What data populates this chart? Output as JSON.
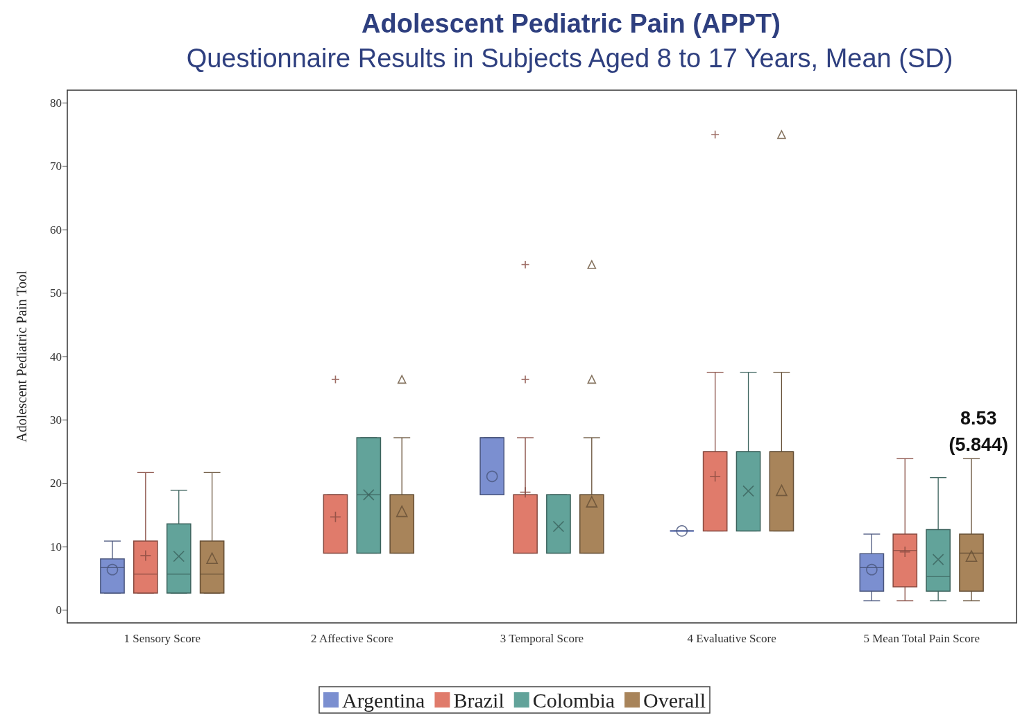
{
  "chart_data": {
    "type": "box",
    "title": "Adolescent Pediatric Pain (APPT)",
    "subtitle": "Questionnaire Results in Subjects Aged 8 to 17 Years, Mean (SD)",
    "ylabel": "Adolescent Pediatric Pain Tool",
    "categories": [
      "1 Sensory Score",
      "2 Affective Score",
      "3 Temporal Score",
      "4 Evaluative Score",
      "5 Mean Total Pain Score"
    ],
    "ylim": [
      -2,
      82
    ],
    "yticks": [
      0,
      10,
      20,
      30,
      40,
      50,
      60,
      70,
      80
    ],
    "grid": false,
    "legend": "bottom",
    "annotations": [
      "8.53\n(5.844)"
    ],
    "series": [
      {
        "name": "Argentina",
        "color": "#7b8fd0",
        "marker": "circle",
        "boxes": [
          {
            "low": 2.7,
            "q1": 2.7,
            "median": 6.7,
            "q3": 8.1,
            "high": 10.9,
            "mean": 6.4
          },
          null,
          {
            "low": 18.2,
            "q1": 18.2,
            "median": 27.2,
            "q3": 27.2,
            "high": 27.2,
            "mean": 21.1
          },
          {
            "low": 12.5,
            "q1": 12.5,
            "median": 12.5,
            "q3": 12.5,
            "high": 12.5,
            "mean": 12.5
          },
          {
            "low": 1.5,
            "q1": 3.0,
            "median": 6.7,
            "q3": 8.9,
            "high": 12.0,
            "mean": 6.4
          }
        ]
      },
      {
        "name": "Brazil",
        "color": "#e07b6b",
        "marker": "plus",
        "boxes": [
          {
            "low": 2.7,
            "q1": 2.7,
            "median": 5.7,
            "q3": 10.9,
            "high": 21.7,
            "mean": 8.6
          },
          {
            "low": 9.0,
            "q1": 9.0,
            "median": 18.2,
            "q3": 18.2,
            "high": 18.2,
            "mean": 14.7,
            "outliers": [
              36.4
            ]
          },
          {
            "low": 9.0,
            "q1": 9.0,
            "median": 18.2,
            "q3": 18.2,
            "high": 27.2,
            "mean": 18.6,
            "outliers": [
              36.4,
              54.5
            ]
          },
          {
            "low": 12.5,
            "q1": 12.5,
            "median": 25.0,
            "q3": 25.0,
            "high": 37.5,
            "mean": 21.1,
            "outliers": [
              75.0
            ]
          },
          {
            "low": 1.5,
            "q1": 3.7,
            "median": 9.4,
            "q3": 12.0,
            "high": 23.9,
            "mean": 9.2
          }
        ]
      },
      {
        "name": "Colombia",
        "color": "#62a39a",
        "marker": "cross",
        "boxes": [
          {
            "low": 2.7,
            "q1": 2.7,
            "median": 5.7,
            "q3": 13.6,
            "high": 18.9,
            "mean": 8.5
          },
          {
            "low": 9.0,
            "q1": 9.0,
            "median": 18.2,
            "q3": 27.2,
            "high": 27.2,
            "mean": 18.2
          },
          {
            "low": 9.0,
            "q1": 9.0,
            "median": 18.2,
            "q3": 18.2,
            "high": 18.2,
            "mean": 13.2
          },
          {
            "low": 12.5,
            "q1": 12.5,
            "median": 25.0,
            "q3": 25.0,
            "high": 37.5,
            "mean": 18.8
          },
          {
            "low": 1.5,
            "q1": 3.0,
            "median": 5.3,
            "q3": 12.7,
            "high": 20.9,
            "mean": 8.0
          }
        ]
      },
      {
        "name": "Overall",
        "color": "#a8845a",
        "marker": "triangle",
        "boxes": [
          {
            "low": 2.7,
            "q1": 2.7,
            "median": 5.7,
            "q3": 10.9,
            "high": 21.7,
            "mean": 8.2
          },
          {
            "low": 9.0,
            "q1": 9.0,
            "median": 18.2,
            "q3": 18.2,
            "high": 27.2,
            "mean": 15.6,
            "outliers": [
              36.4
            ]
          },
          {
            "low": 9.0,
            "q1": 9.0,
            "median": 18.2,
            "q3": 18.2,
            "high": 27.2,
            "mean": 17.1,
            "outliers": [
              36.4,
              54.5
            ]
          },
          {
            "low": 12.5,
            "q1": 12.5,
            "median": 25.0,
            "q3": 25.0,
            "high": 37.5,
            "mean": 18.9,
            "outliers": [
              75.0
            ]
          },
          {
            "low": 1.5,
            "q1": 3.0,
            "median": 9.0,
            "q3": 12.0,
            "high": 23.9,
            "mean": 8.53
          }
        ]
      }
    ]
  }
}
